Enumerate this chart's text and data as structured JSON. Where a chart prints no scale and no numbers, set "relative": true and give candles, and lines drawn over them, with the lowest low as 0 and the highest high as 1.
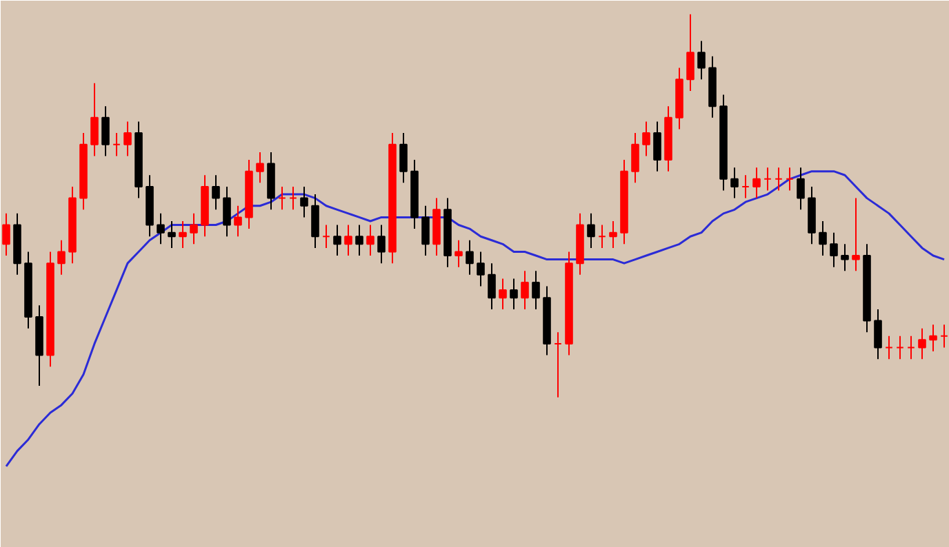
{
  "chart_data": {
    "type": "candlestick",
    "relative": true,
    "categories": [
      null,
      null,
      null,
      null,
      null,
      null,
      null,
      null,
      null,
      null,
      null,
      null,
      null,
      null,
      null,
      null,
      null,
      null,
      null,
      null,
      null,
      null,
      null,
      null,
      null,
      null,
      null,
      null,
      null,
      null,
      null,
      null,
      null,
      null,
      null,
      null,
      null,
      null,
      null,
      null,
      null,
      null,
      null,
      null,
      null,
      null,
      null,
      null,
      null,
      null,
      null,
      null,
      null,
      null,
      null,
      null,
      null,
      null,
      null,
      null,
      null,
      null,
      null,
      null,
      null,
      null,
      null,
      null,
      null,
      null,
      null,
      null,
      null,
      null,
      null,
      null,
      null,
      null,
      null,
      null,
      null,
      null,
      null,
      null,
      null,
      null
    ],
    "ohlc": [
      [
        0.4,
        0.48,
        0.37,
        0.45
      ],
      [
        0.45,
        0.48,
        0.32,
        0.35
      ],
      [
        0.35,
        0.38,
        0.18,
        0.21
      ],
      [
        0.21,
        0.24,
        0.03,
        0.11
      ],
      [
        0.11,
        0.38,
        0.08,
        0.35
      ],
      [
        0.35,
        0.41,
        0.32,
        0.38
      ],
      [
        0.38,
        0.55,
        0.35,
        0.52
      ],
      [
        0.52,
        0.69,
        0.49,
        0.66
      ],
      [
        0.66,
        0.82,
        0.63,
        0.73
      ],
      [
        0.73,
        0.76,
        0.63,
        0.66
      ],
      [
        0.66,
        0.69,
        0.63,
        0.66
      ],
      [
        0.66,
        0.72,
        0.63,
        0.69
      ],
      [
        0.69,
        0.72,
        0.52,
        0.55
      ],
      [
        0.55,
        0.58,
        0.42,
        0.45
      ],
      [
        0.45,
        0.48,
        0.4,
        0.43
      ],
      [
        0.43,
        0.46,
        0.39,
        0.42
      ],
      [
        0.42,
        0.46,
        0.39,
        0.43
      ],
      [
        0.43,
        0.48,
        0.4,
        0.45
      ],
      [
        0.45,
        0.58,
        0.42,
        0.55
      ],
      [
        0.55,
        0.58,
        0.49,
        0.52
      ],
      [
        0.52,
        0.55,
        0.42,
        0.45
      ],
      [
        0.45,
        0.5,
        0.42,
        0.47
      ],
      [
        0.47,
        0.62,
        0.44,
        0.59
      ],
      [
        0.59,
        0.64,
        0.56,
        0.61
      ],
      [
        0.61,
        0.64,
        0.49,
        0.52
      ],
      [
        0.52,
        0.55,
        0.49,
        0.52
      ],
      [
        0.52,
        0.55,
        0.49,
        0.52
      ],
      [
        0.52,
        0.55,
        0.47,
        0.5
      ],
      [
        0.5,
        0.53,
        0.39,
        0.42
      ],
      [
        0.42,
        0.45,
        0.39,
        0.42
      ],
      [
        0.42,
        0.45,
        0.37,
        0.4
      ],
      [
        0.4,
        0.45,
        0.37,
        0.42
      ],
      [
        0.42,
        0.45,
        0.37,
        0.4
      ],
      [
        0.4,
        0.45,
        0.37,
        0.42
      ],
      [
        0.42,
        0.45,
        0.35,
        0.38
      ],
      [
        0.38,
        0.69,
        0.35,
        0.66
      ],
      [
        0.66,
        0.69,
        0.56,
        0.59
      ],
      [
        0.59,
        0.62,
        0.44,
        0.47
      ],
      [
        0.47,
        0.5,
        0.37,
        0.4
      ],
      [
        0.4,
        0.52,
        0.37,
        0.49
      ],
      [
        0.49,
        0.52,
        0.34,
        0.37
      ],
      [
        0.37,
        0.41,
        0.34,
        0.38
      ],
      [
        0.38,
        0.41,
        0.32,
        0.35
      ],
      [
        0.35,
        0.38,
        0.29,
        0.32
      ],
      [
        0.32,
        0.35,
        0.23,
        0.26
      ],
      [
        0.26,
        0.31,
        0.23,
        0.28
      ],
      [
        0.28,
        0.31,
        0.23,
        0.26
      ],
      [
        0.26,
        0.33,
        0.23,
        0.3
      ],
      [
        0.3,
        0.33,
        0.23,
        0.26
      ],
      [
        0.26,
        0.29,
        0.11,
        0.14
      ],
      [
        0.14,
        0.17,
        0.0,
        0.14
      ],
      [
        0.14,
        0.38,
        0.11,
        0.35
      ],
      [
        0.35,
        0.48,
        0.32,
        0.45
      ],
      [
        0.45,
        0.48,
        0.39,
        0.42
      ],
      [
        0.42,
        0.45,
        0.39,
        0.42
      ],
      [
        0.42,
        0.46,
        0.39,
        0.43
      ],
      [
        0.43,
        0.62,
        0.4,
        0.59
      ],
      [
        0.59,
        0.69,
        0.56,
        0.66
      ],
      [
        0.66,
        0.72,
        0.63,
        0.69
      ],
      [
        0.69,
        0.72,
        0.59,
        0.62
      ],
      [
        0.62,
        0.76,
        0.59,
        0.73
      ],
      [
        0.73,
        0.86,
        0.7,
        0.83
      ],
      [
        0.83,
        1.0,
        0.8,
        0.9
      ],
      [
        0.9,
        0.93,
        0.83,
        0.86
      ],
      [
        0.86,
        0.89,
        0.73,
        0.76
      ],
      [
        0.76,
        0.79,
        0.54,
        0.57
      ],
      [
        0.57,
        0.6,
        0.52,
        0.55
      ],
      [
        0.55,
        0.58,
        0.52,
        0.55
      ],
      [
        0.55,
        0.6,
        0.52,
        0.57
      ],
      [
        0.57,
        0.6,
        0.54,
        0.57
      ],
      [
        0.57,
        0.6,
        0.54,
        0.57
      ],
      [
        0.57,
        0.6,
        0.54,
        0.57
      ],
      [
        0.57,
        0.6,
        0.49,
        0.52
      ],
      [
        0.52,
        0.55,
        0.4,
        0.43
      ],
      [
        0.43,
        0.46,
        0.37,
        0.4
      ],
      [
        0.4,
        0.43,
        0.34,
        0.37
      ],
      [
        0.37,
        0.4,
        0.33,
        0.36
      ],
      [
        0.36,
        0.52,
        0.33,
        0.37
      ],
      [
        0.37,
        0.4,
        0.17,
        0.2
      ],
      [
        0.2,
        0.23,
        0.1,
        0.13
      ],
      [
        0.13,
        0.16,
        0.1,
        0.13
      ],
      [
        0.13,
        0.16,
        0.1,
        0.13
      ],
      [
        0.13,
        0.16,
        0.1,
        0.13
      ],
      [
        0.13,
        0.18,
        0.1,
        0.15
      ],
      [
        0.15,
        0.19,
        0.12,
        0.16
      ],
      [
        0.16,
        0.19,
        0.13,
        0.16
      ]
    ],
    "series": [
      {
        "type": "line",
        "color": "#2b2bd6",
        "values": [
          -0.18,
          -0.14,
          -0.11,
          -0.07,
          -0.04,
          -0.02,
          0.01,
          0.06,
          0.14,
          0.21,
          0.28,
          0.35,
          0.38,
          0.41,
          0.43,
          0.45,
          0.45,
          0.45,
          0.45,
          0.45,
          0.46,
          0.48,
          0.5,
          0.5,
          0.51,
          0.53,
          0.53,
          0.53,
          0.52,
          0.5,
          0.49,
          0.48,
          0.47,
          0.46,
          0.47,
          0.47,
          0.47,
          0.47,
          0.47,
          0.47,
          0.47,
          0.45,
          0.44,
          0.42,
          0.41,
          0.4,
          0.38,
          0.38,
          0.37,
          0.36,
          0.36,
          0.36,
          0.36,
          0.36,
          0.36,
          0.36,
          0.35,
          0.36,
          0.37,
          0.38,
          0.39,
          0.4,
          0.42,
          0.43,
          0.46,
          0.48,
          0.49,
          0.51,
          0.52,
          0.53,
          0.55,
          0.57,
          0.58,
          0.59,
          0.59,
          0.59,
          0.58,
          0.55,
          0.52,
          0.5,
          0.48,
          0.45,
          0.42,
          0.39,
          0.37,
          0.36
        ]
      }
    ]
  }
}
